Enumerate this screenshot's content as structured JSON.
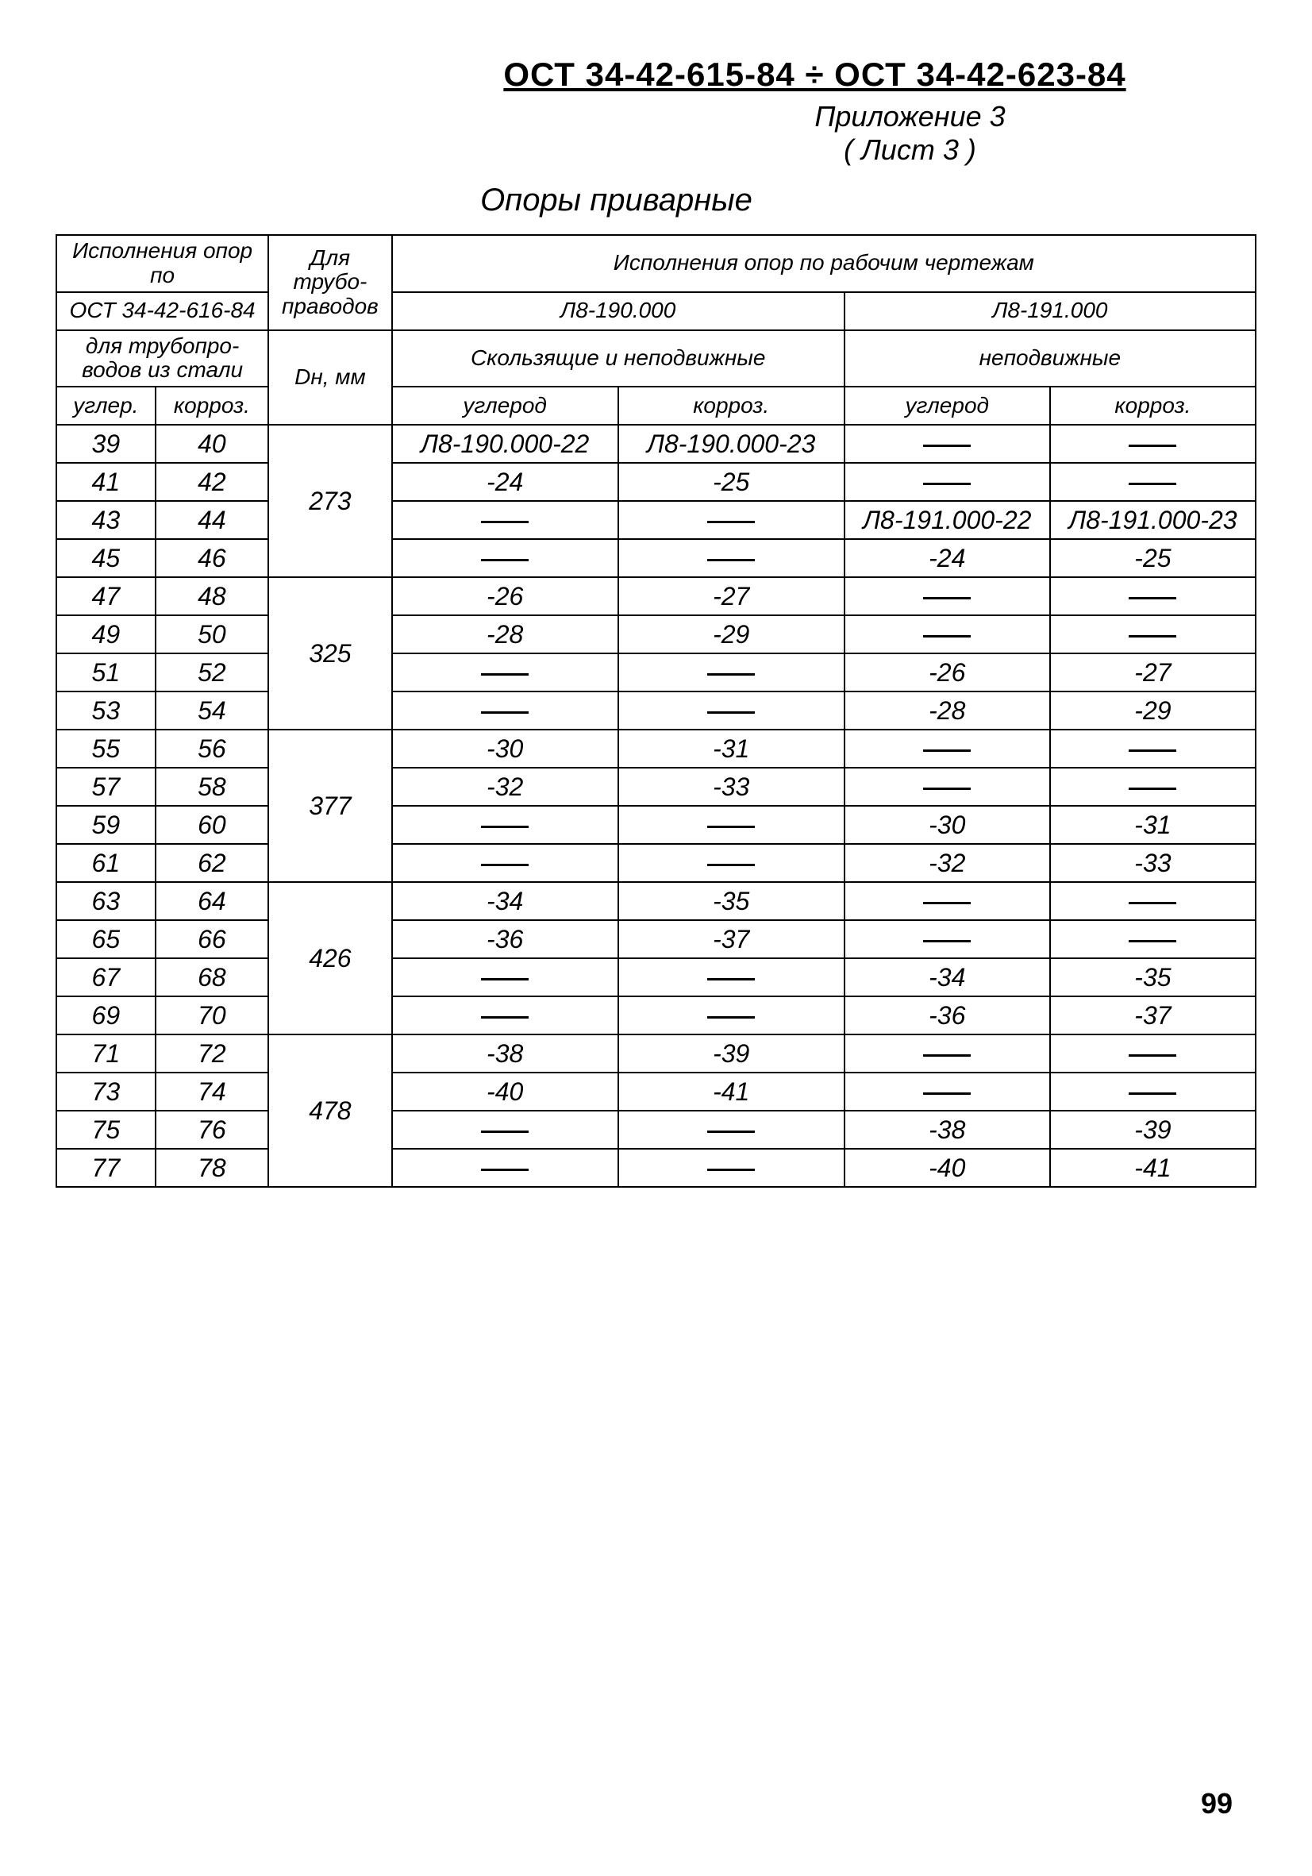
{
  "header": {
    "doc_number": "ОСТ 34-42-615-84 ÷ ОСТ 34-42-623-84",
    "appendix": "Приложение 3",
    "sheet": "( Лист 3 )"
  },
  "title": "Опоры приварные",
  "headers": {
    "h1": "Исполнения опор по ОСТ 34-42-616-84 для трубопро­водов из стали",
    "h1a": "Исполнения опор по",
    "h1b": "ОСТ 34-42-616-84",
    "h1c": "для трубопро­водов из стали",
    "h1d_a": "углер.",
    "h1d_b": "корроз.",
    "h2": "Для трубо­право­дов",
    "h2b": "Dн, мм",
    "h3": "Исполнения опор по рабочим чертежам",
    "h3a": "Л8-190.000",
    "h3b": "Л8-191.000",
    "h3a2": "Скользящие и неподвижные",
    "h3b2": "неподвижные",
    "sub_a": "углерод",
    "sub_b": "корроз.",
    "sub_c": "углерод",
    "sub_d": "корроз."
  },
  "groups": [
    {
      "dn": "273",
      "rows": [
        {
          "a": "39",
          "b": "40",
          "d": "Л8-190.000-22",
          "e": "Л8-190.000-23",
          "f": "—",
          "g": "—"
        },
        {
          "a": "41",
          "b": "42",
          "d": "-24",
          "e": "-25",
          "f": "—",
          "g": "—"
        },
        {
          "a": "43",
          "b": "44",
          "d": "—",
          "e": "—",
          "f": "Л8-191.000-22",
          "g": "Л8-191.000-23"
        },
        {
          "a": "45",
          "b": "46",
          "d": "—",
          "e": "—",
          "f": "-24",
          "g": "-25"
        }
      ]
    },
    {
      "dn": "325",
      "rows": [
        {
          "a": "47",
          "b": "48",
          "d": "-26",
          "e": "-27",
          "f": "—",
          "g": "—"
        },
        {
          "a": "49",
          "b": "50",
          "d": "-28",
          "e": "-29",
          "f": "—",
          "g": "—"
        },
        {
          "a": "51",
          "b": "52",
          "d": "—",
          "e": "—",
          "f": "-26",
          "g": "-27"
        },
        {
          "a": "53",
          "b": "54",
          "d": "—",
          "e": "—",
          "f": "-28",
          "g": "-29"
        }
      ]
    },
    {
      "dn": "377",
      "rows": [
        {
          "a": "55",
          "b": "56",
          "d": "-30",
          "e": "-31",
          "f": "—",
          "g": "—"
        },
        {
          "a": "57",
          "b": "58",
          "d": "-32",
          "e": "-33",
          "f": "—",
          "g": "—"
        },
        {
          "a": "59",
          "b": "60",
          "d": "—",
          "e": "—",
          "f": "-30",
          "g": "-31"
        },
        {
          "a": "61",
          "b": "62",
          "d": "—",
          "e": "—",
          "f": "-32",
          "g": "-33"
        }
      ]
    },
    {
      "dn": "426",
      "rows": [
        {
          "a": "63",
          "b": "64",
          "d": "-34",
          "e": "-35",
          "f": "—",
          "g": "—"
        },
        {
          "a": "65",
          "b": "66",
          "d": "-36",
          "e": "-37",
          "f": "—",
          "g": "—"
        },
        {
          "a": "67",
          "b": "68",
          "d": "—",
          "e": "—",
          "f": "-34",
          "g": "-35"
        },
        {
          "a": "69",
          "b": "70",
          "d": "—",
          "e": "—",
          "f": "-36",
          "g": "-37"
        }
      ]
    },
    {
      "dn": "478",
      "rows": [
        {
          "a": "71",
          "b": "72",
          "d": "-38",
          "e": "-39",
          "f": "—",
          "g": "—"
        },
        {
          "a": "73",
          "b": "74",
          "d": "-40",
          "e": "-41",
          "f": "—",
          "g": "—"
        },
        {
          "a": "75",
          "b": "76",
          "d": "—",
          "e": "—",
          "f": "-38",
          "g": "-39"
        },
        {
          "a": "77",
          "b": "78",
          "d": "—",
          "e": "—",
          "f": "-40",
          "g": "-41"
        }
      ]
    }
  ],
  "page_num": "99",
  "style": {
    "dash_glyph": "—"
  }
}
